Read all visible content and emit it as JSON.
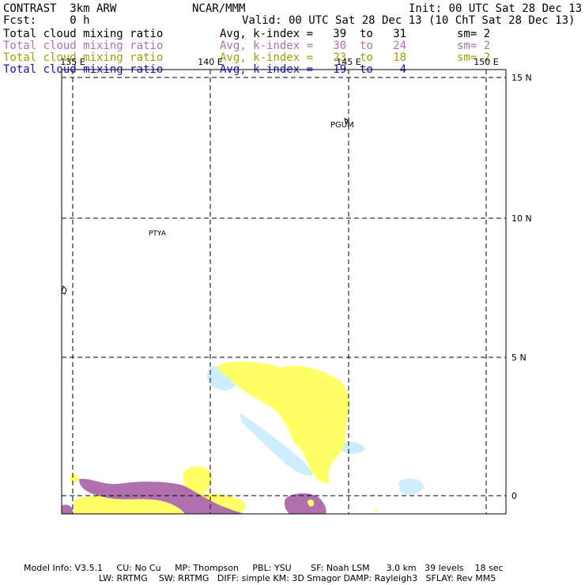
{
  "header": {
    "title": "CONTRAST  3km ARW",
    "center": "NCAR/MMM",
    "init": "Init: 00 UTC Sat 28 Dec 13",
    "fcst": "Fcst:     0 h",
    "valid": "Valid: 00 UTC Sat 28 Dec 13 (10 ChT Sat 28 Dec 13)"
  },
  "fields": [
    {
      "name": "Total cloud mixing ratio",
      "range": "Avg, k-index =   39  to   31",
      "sm": "sm= 2",
      "color": "#000000"
    },
    {
      "name": "Total cloud mixing ratio",
      "range": "Avg, k-index =   30  to   24",
      "sm": "sm= 2",
      "color": "#b070b0"
    },
    {
      "name": "Total cloud mixing ratio",
      "range": "Avg, k-index =   23  to   18",
      "sm": "sm= 2",
      "color": "#a0a000"
    },
    {
      "name": "Total cloud mixing ratio",
      "range": "Avg, k-index =   19  to    4",
      "sm": "",
      "color": "#1010c0"
    }
  ],
  "map": {
    "lon_labels": [
      "135 E",
      "140 E",
      "145 E",
      "150 E"
    ],
    "lat_labels": [
      "15 N",
      "10 N",
      "5 N",
      "0"
    ],
    "places": [
      "PGUM",
      "PTYA"
    ],
    "fill_colors": {
      "high": "#b070b0",
      "mid": "#ffff66",
      "low": "#cceeff"
    }
  },
  "footer": {
    "line1": "Model Info: V3.5.1     CU: No Cu     MP: Thompson     PBL: YSU       SF: Noah LSM      3.0 km   39 levels    18 sec",
    "line2": "LW: RRTMG    SW: RRTMG   DIFF: simple KM: 3D Smagor DAMP: Rayleigh3   SFLAY: Rev MM5"
  }
}
